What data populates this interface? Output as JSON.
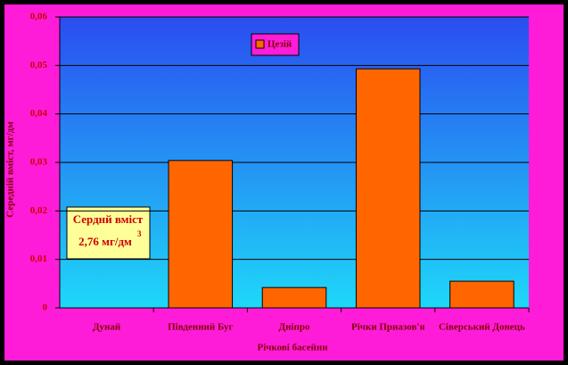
{
  "chart_data": {
    "type": "bar",
    "categories": [
      "Дунай",
      "Південний Буг",
      "Дніпро",
      "Річки Приазов'я",
      "Сіверський Донець"
    ],
    "series": [
      {
        "name": "Цезій",
        "color": "#ff6600",
        "values": [
          0,
          0.0304,
          0.0042,
          0.0493,
          0.0055
        ]
      }
    ],
    "ylim": [
      0,
      0.06
    ],
    "yticks": [
      0,
      {
        "value": 0.01,
        "label": "0,01"
      },
      {
        "value": 0.02,
        "label": "0,02"
      },
      {
        "value": 0.03,
        "label": "0,03"
      },
      {
        "value": 0.04,
        "label": "0,04"
      },
      {
        "value": 0.05,
        "label": "0,05"
      },
      {
        "value": 0.06,
        "label": "0,06"
      }
    ],
    "grid": true,
    "x_label": "Річкові басейни",
    "y_label": "Середній вміст, мг/дм",
    "annotation": {
      "line1": "Серднй вміст",
      "line2": "2,76 мг/дм",
      "sup": "3"
    }
  }
}
